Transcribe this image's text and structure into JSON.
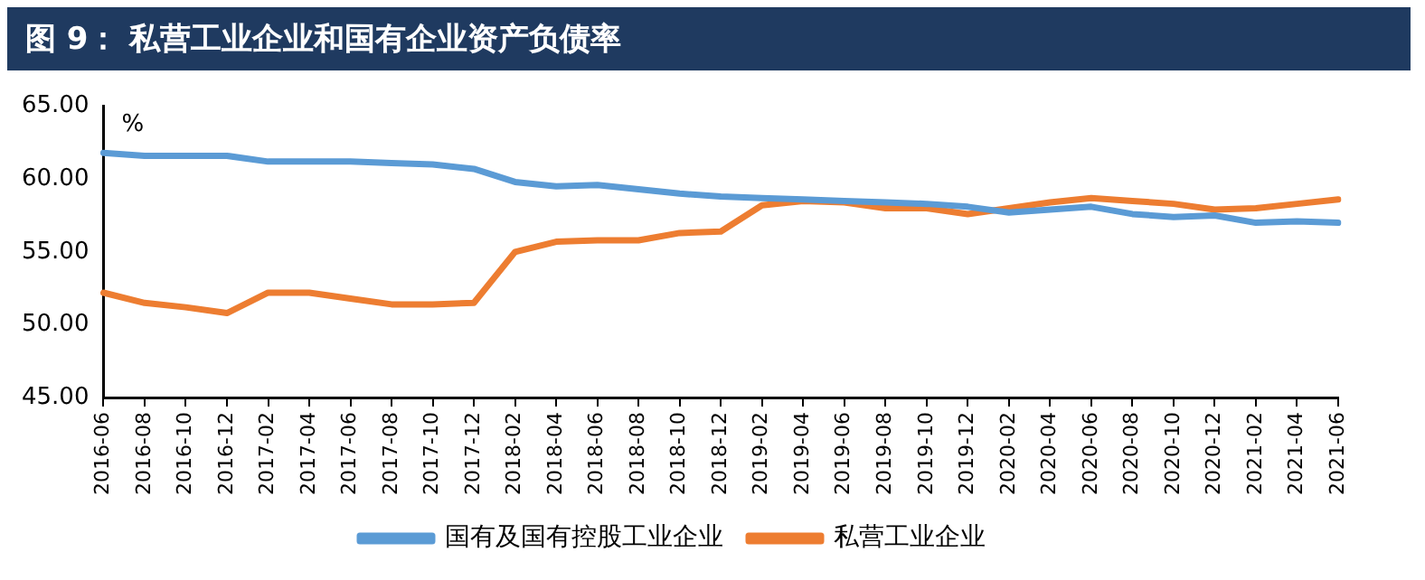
{
  "chart_data": {
    "type": "line",
    "title": "图 9：  私营工业企业和国有企业资产负债率",
    "ylabel": "%",
    "categories": [
      "2016-06",
      "2016-08",
      "2016-10",
      "2016-12",
      "2017-02",
      "2017-04",
      "2017-06",
      "2017-08",
      "2017-10",
      "2017-12",
      "2018-02",
      "2018-04",
      "2018-06",
      "2018-08",
      "2018-10",
      "2018-12",
      "2019-02",
      "2019-04",
      "2019-06",
      "2019-08",
      "2019-10",
      "2019-12",
      "2020-02",
      "2020-04",
      "2020-06",
      "2020-08",
      "2020-10",
      "2020-12",
      "2021-02",
      "2021-04",
      "2021-06"
    ],
    "series": [
      {
        "name": "国有及国有控股工业企业",
        "color": "#5b9bd5",
        "values": [
          61.8,
          61.6,
          61.6,
          61.6,
          61.2,
          61.2,
          61.2,
          61.1,
          61.0,
          60.7,
          59.8,
          59.5,
          59.6,
          59.3,
          59.0,
          58.8,
          58.7,
          58.6,
          58.5,
          58.4,
          58.3,
          58.1,
          57.7,
          57.9,
          58.1,
          57.6,
          57.4,
          57.5,
          57.0,
          57.1,
          57.0
        ]
      },
      {
        "name": "私营工业企业",
        "color": "#ed7d31",
        "values": [
          52.2,
          51.5,
          51.2,
          50.8,
          52.2,
          52.2,
          51.8,
          51.4,
          51.4,
          51.5,
          55.0,
          55.7,
          55.8,
          55.8,
          56.3,
          56.4,
          58.2,
          58.5,
          58.4,
          58.0,
          58.0,
          57.6,
          58.0,
          58.4,
          58.7,
          58.5,
          58.3,
          57.9,
          58.0,
          58.3,
          58.6
        ]
      }
    ],
    "ylim": [
      45,
      65
    ],
    "yticks": [
      {
        "value": 45,
        "label": "45.00"
      },
      {
        "value": 50,
        "label": "50.00"
      },
      {
        "value": 55,
        "label": "55.00"
      },
      {
        "value": 60,
        "label": "60.00"
      },
      {
        "value": 65,
        "label": "65.00"
      }
    ],
    "grid": false,
    "legend": "bottom",
    "marker": "none",
    "line_style": "solid"
  }
}
